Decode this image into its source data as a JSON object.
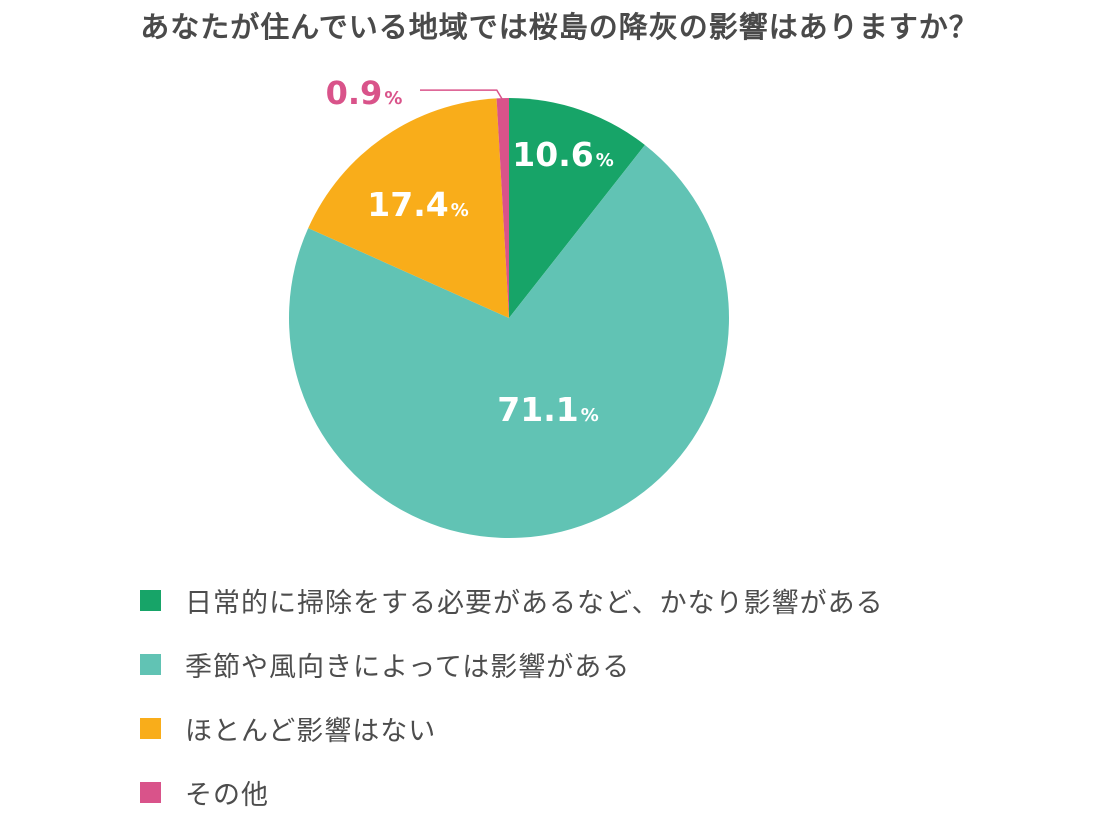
{
  "chart_data": {
    "type": "pie",
    "title": "あなたが住んでいる地域では桜島の降灰の影響はありますか？",
    "categories": [
      "日常的に掃除をする必要があるなど、かなり影響がある",
      "季節や風向きによっては影響がある",
      "ほとんど影響はない",
      "その他"
    ],
    "values": [
      10.6,
      71.1,
      17.4,
      0.9
    ],
    "unit": "%",
    "colors": [
      "#17a468",
      "#61c3b4",
      "#f9ad1a",
      "#d9538a"
    ],
    "data_labels": [
      "10.6",
      "71.1",
      "17.4",
      "0.9"
    ],
    "label_colors": [
      "#ffffff",
      "#ffffff",
      "#ffffff",
      "#d9538a"
    ],
    "legend_position": "bottom"
  }
}
